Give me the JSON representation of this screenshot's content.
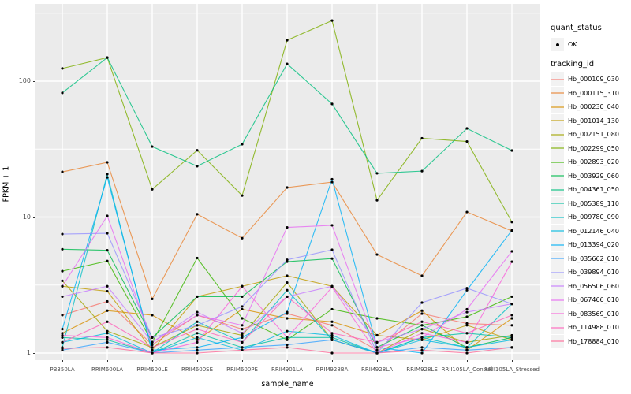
{
  "y_axis": {
    "title": "FPKM + 1",
    "ticks": [
      {
        "label": "100",
        "value": 100
      },
      {
        "label": "10",
        "value": 10
      },
      {
        "label": "1",
        "value": 1
      }
    ],
    "minor_grid_values": [
      316.2,
      31.62,
      3.162
    ]
  },
  "x_axis": {
    "title": "sample_name",
    "categories": [
      "PB350LA",
      "RRIM600LA",
      "RRIM600LE",
      "RRIM600SE",
      "RRIM600PE",
      "RRIM901LA",
      "RRIM928BA",
      "RRIM928LA",
      "RRIM928LE",
      "RRII105LA_Control",
      "RRII105LA_Stressed"
    ]
  },
  "legend": {
    "quant_status_title": "quant_status",
    "quant_status_items": [
      {
        "label": "OK",
        "marker": "black-point"
      }
    ],
    "tracking_id_title": "tracking_id"
  },
  "colors": {
    "panel_bg": "#EBEBEB",
    "grid": "#FFFFFF",
    "axis_text": "#4D4D4D",
    "tick_mark": "#333333",
    "legend_key_bg": "#F2F2F2",
    "point": "#000000"
  },
  "chart_data": {
    "type": "line",
    "title": "",
    "xlabel": "sample_name",
    "ylabel": "FPKM + 1",
    "y_scale": "log10",
    "ylim": [
      1,
      370
    ],
    "grid": "white major gridlines at 1/10/100 with minors, vertical line per category",
    "legend_position": "right",
    "point_marker": "small black dot on every value",
    "categories": [
      "PB350LA",
      "RRIM600LA",
      "RRIM600LE",
      "RRIM600SE",
      "RRIM600PE",
      "RRIM901LA",
      "RRIM928BA",
      "RRIM928LA",
      "RRIM928LE",
      "RRII105LA_Control",
      "RRII105LA_Stressed"
    ],
    "series": [
      {
        "name": "Hb_000109_030",
        "color": "#F8766D",
        "values": [
          1.9,
          2.4,
          1.15,
          1.9,
          1.5,
          1.95,
          1.6,
          1.05,
          1.95,
          1.65,
          1.6
        ]
      },
      {
        "name": "Hb_000115_310",
        "color": "#EA8331",
        "values": [
          21.5,
          25.3,
          2.5,
          10.5,
          7.0,
          16.5,
          18.1,
          5.3,
          3.7,
          10.9,
          7.9
        ]
      },
      {
        "name": "Hb_000230_040",
        "color": "#D89000",
        "values": [
          1.4,
          2.05,
          1.9,
          1.25,
          2.1,
          1.8,
          1.7,
          1.35,
          2.05,
          1.05,
          1.8
        ]
      },
      {
        "name": "Hb_001014_130",
        "color": "#C09B00",
        "values": [
          3.1,
          2.85,
          1.05,
          2.6,
          3.1,
          3.7,
          3.1,
          1.35,
          1.25,
          1.6,
          1.25
        ]
      },
      {
        "name": "Hb_002151_080",
        "color": "#A3A500",
        "values": [
          3.4,
          1.45,
          1.1,
          1.6,
          1.35,
          3.3,
          1.25,
          1.0,
          1.5,
          1.2,
          1.35
        ]
      },
      {
        "name": "Hb_002299_050",
        "color": "#7CAE00",
        "values": [
          124,
          149,
          16,
          31,
          14.4,
          200,
          279,
          13.3,
          38,
          36,
          9.2
        ]
      },
      {
        "name": "Hb_002893_020",
        "color": "#39B600",
        "values": [
          4.0,
          4.75,
          1.2,
          5.0,
          1.8,
          1.25,
          2.1,
          1.8,
          1.6,
          1.85,
          2.6
        ]
      },
      {
        "name": "Hb_003929_060",
        "color": "#00BB4E",
        "values": [
          5.8,
          5.7,
          1.3,
          2.6,
          2.6,
          4.7,
          4.95,
          1.1,
          1.6,
          1.1,
          1.3
        ]
      },
      {
        "name": "Hb_004361_050",
        "color": "#00BF7D",
        "values": [
          82,
          149,
          33,
          23.7,
          34.4,
          134,
          68,
          21,
          21.8,
          44.9,
          30.9
        ]
      },
      {
        "name": "Hb_005389_110",
        "color": "#00C1A3",
        "values": [
          1.3,
          1.25,
          1.0,
          1.4,
          1.1,
          1.3,
          1.3,
          1.0,
          1.3,
          1.4,
          1.3
        ]
      },
      {
        "name": "Hb_009780_090",
        "color": "#00BFC4",
        "values": [
          1.1,
          20.7,
          1.0,
          1.7,
          1.2,
          2.9,
          1.25,
          1.0,
          1.3,
          1.1,
          2.3
        ]
      },
      {
        "name": "Hb_012146_040",
        "color": "#00BAE0",
        "values": [
          1.2,
          1.4,
          1.0,
          1.3,
          1.05,
          1.45,
          1.35,
          1.0,
          1.25,
          1.1,
          1.25
        ]
      },
      {
        "name": "Hb_013394_020",
        "color": "#00B0F6",
        "values": [
          1.5,
          19.6,
          1.05,
          1.1,
          1.3,
          2.0,
          19.0,
          1.1,
          1.0,
          2.9,
          8.0
        ]
      },
      {
        "name": "Hb_035662_010",
        "color": "#35A2FF",
        "values": [
          1.05,
          1.2,
          1.0,
          1.05,
          1.1,
          1.15,
          1.25,
          1.0,
          1.1,
          1.05,
          1.1
        ]
      },
      {
        "name": "Hb_039894_010",
        "color": "#9590FF",
        "values": [
          7.5,
          7.6,
          1.3,
          1.6,
          2.2,
          4.85,
          5.75,
          1.0,
          2.35,
          3.0,
          2.3
        ]
      },
      {
        "name": "Hb_056506_060",
        "color": "#C77CFF",
        "values": [
          2.6,
          3.1,
          1.2,
          2.0,
          1.4,
          2.6,
          3.1,
          1.2,
          1.5,
          2.0,
          2.3
        ]
      },
      {
        "name": "Hb_067466_010",
        "color": "#E76BF3",
        "values": [
          3.1,
          10.2,
          1.2,
          1.9,
          1.6,
          8.4,
          8.7,
          1.1,
          1.3,
          2.1,
          5.6
        ]
      },
      {
        "name": "Hb_083569_010",
        "color": "#FA62DB",
        "values": [
          1.35,
          1.3,
          1.0,
          1.2,
          3.1,
          1.3,
          3.05,
          1.0,
          1.4,
          1.2,
          4.7
        ]
      },
      {
        "name": "Hb_114988_010",
        "color": "#FF62BC",
        "values": [
          1.2,
          1.7,
          1.1,
          1.5,
          1.2,
          2.6,
          1.4,
          1.2,
          1.7,
          1.4,
          1.9
        ]
      },
      {
        "name": "Hb_178884_010",
        "color": "#FF6A98",
        "values": [
          1.08,
          1.1,
          1.0,
          1.0,
          1.05,
          1.1,
          1.0,
          1.0,
          1.05,
          1.0,
          1.1
        ]
      }
    ]
  }
}
